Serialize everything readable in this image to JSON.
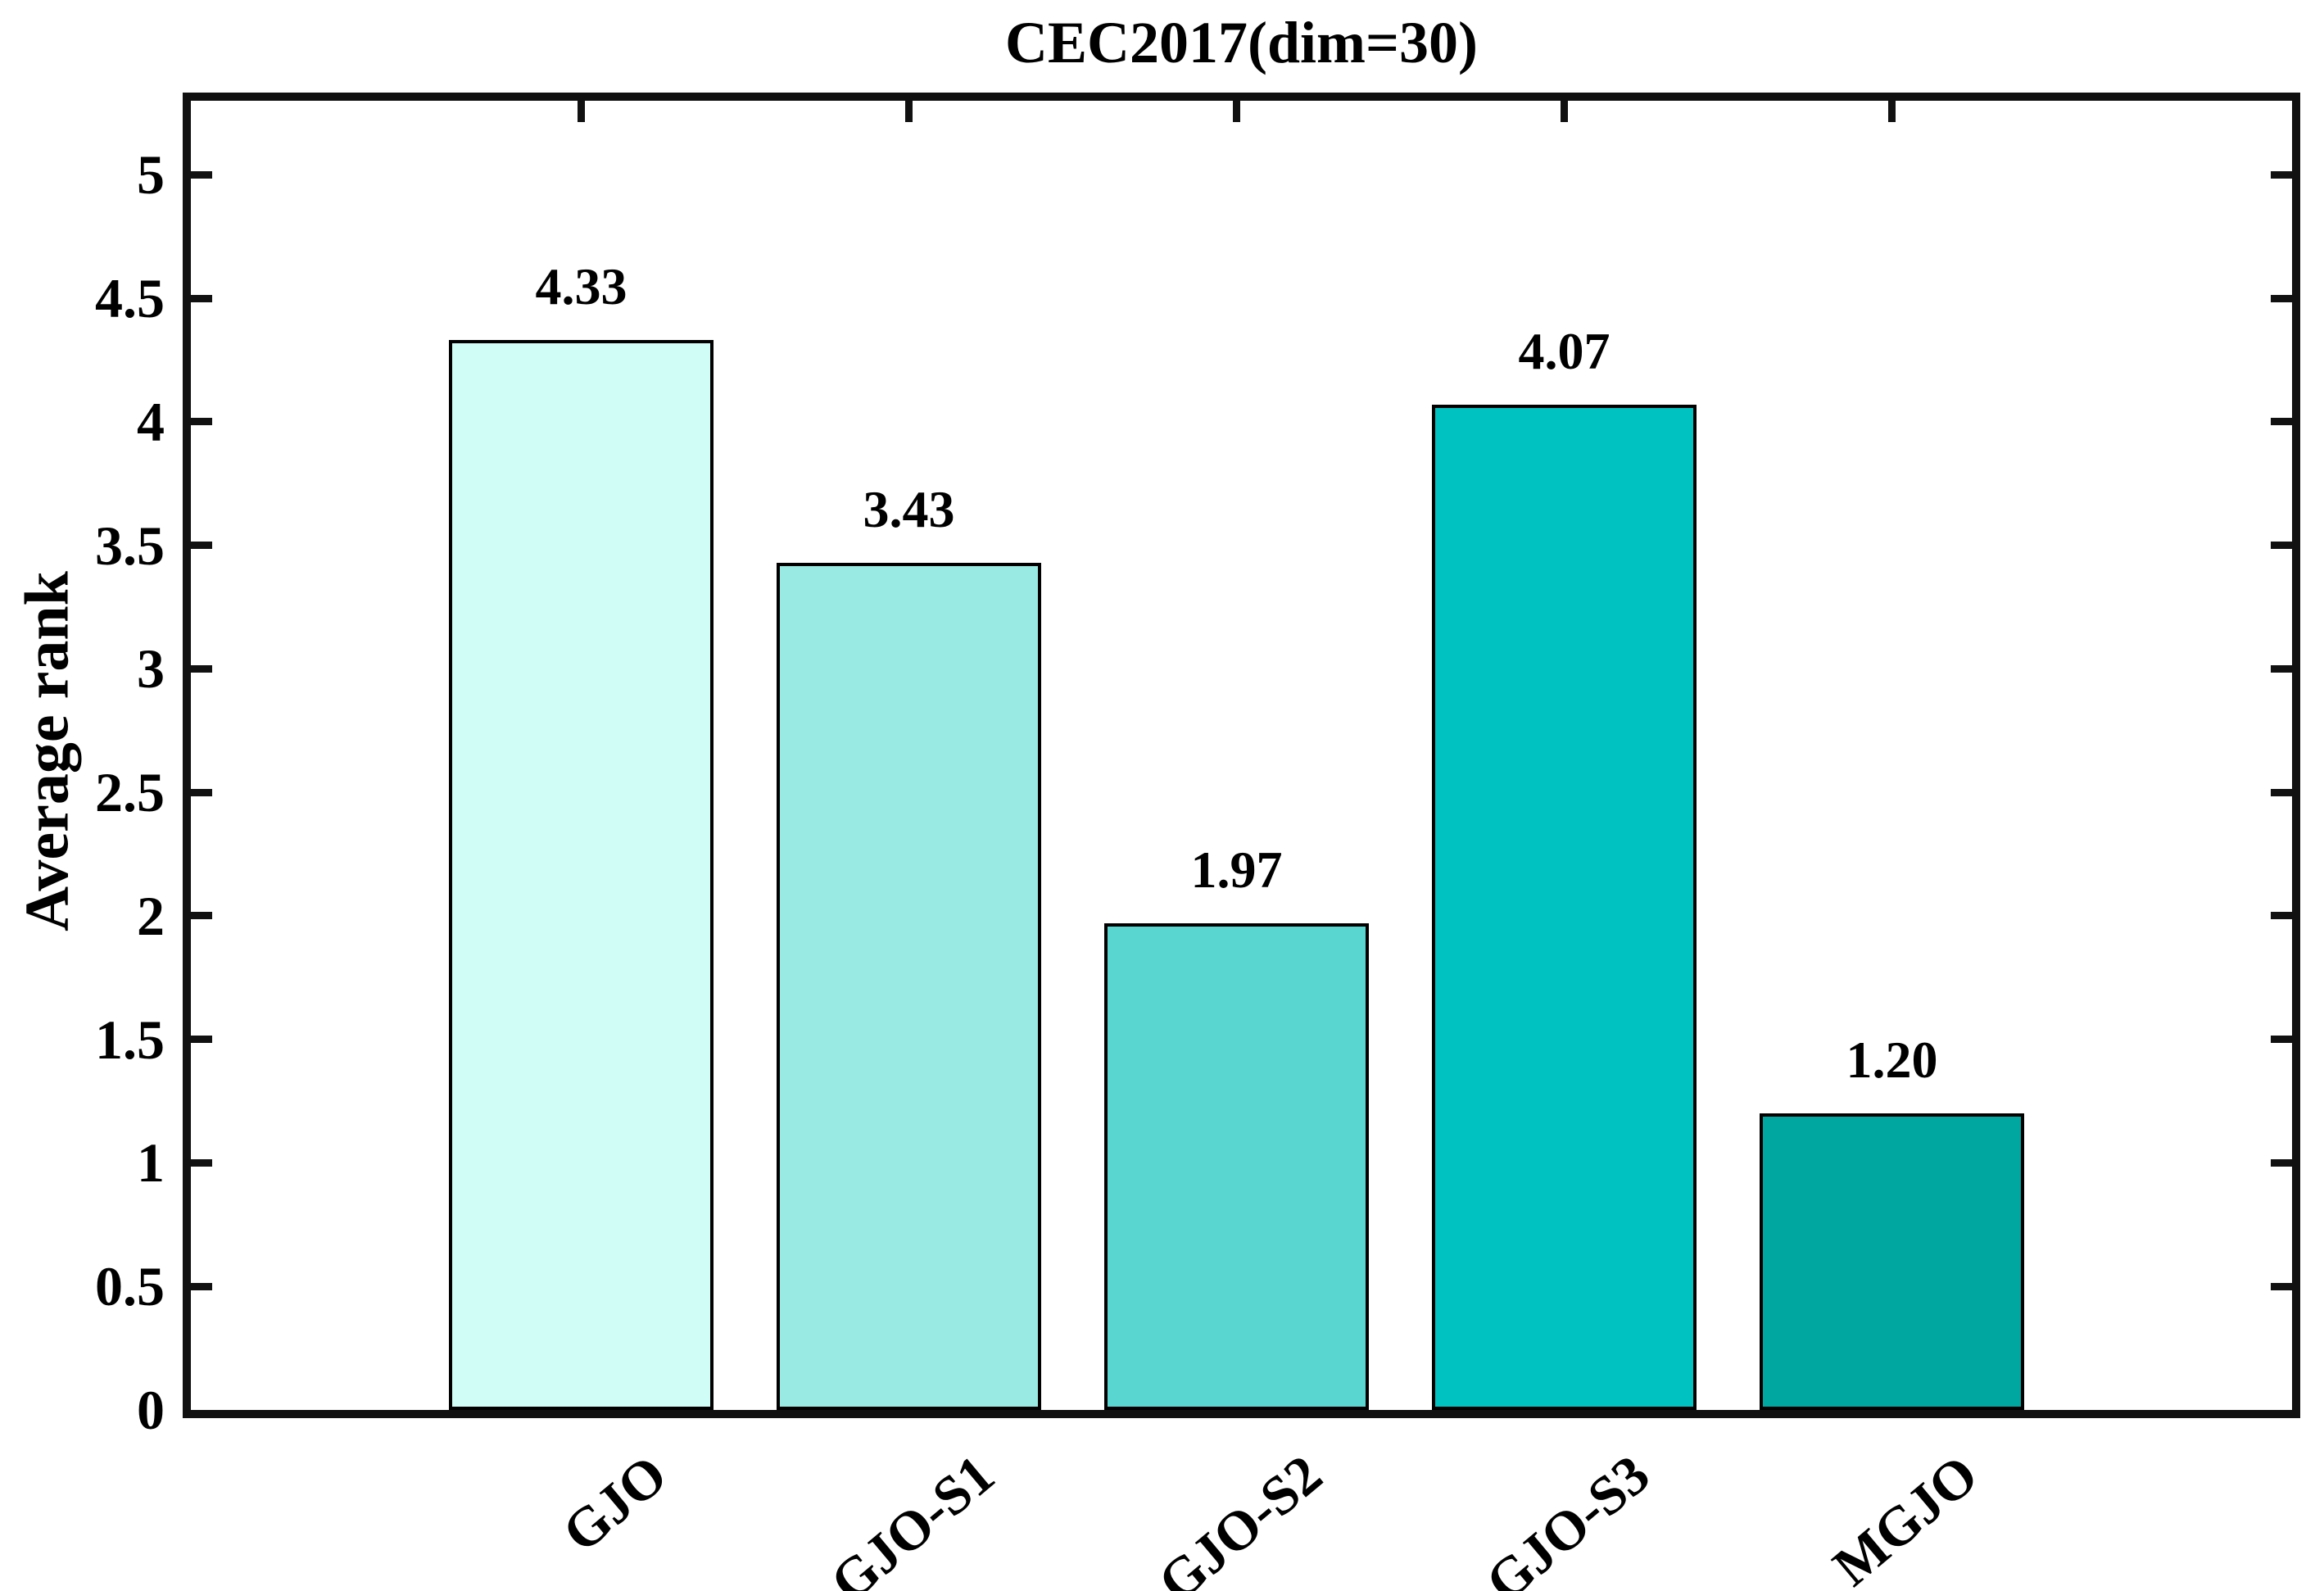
{
  "figure": {
    "title": "CEC2017(dim=30)"
  },
  "chart_data": {
    "type": "bar",
    "title": "CEC2017(dim=30)",
    "xlabel": "",
    "ylabel": "Average rank",
    "categories": [
      "GJO",
      "GJO-S1",
      "GJO-S2",
      "GJO-S3",
      "MGJO"
    ],
    "values": [
      4.33,
      3.43,
      1.97,
      4.07,
      1.2
    ],
    "value_labels": [
      "4.33",
      "3.43",
      "1.97",
      "4.07",
      "1.20"
    ],
    "bar_colors": [
      "#d0fdf6",
      "#99eae2",
      "#5ad6d1",
      "#00c3c1",
      "#00a6a0"
    ],
    "bar_edge_color": "#000000",
    "axis_color": "#111111",
    "text_color": "#000000",
    "background_color": "#ffffff",
    "ylim": [
      0,
      5.3
    ],
    "yticks": [
      0,
      0.5,
      1,
      1.5,
      2,
      2.5,
      3,
      3.5,
      4,
      4.5,
      5
    ],
    "ytick_labels": [
      "0",
      "0.5",
      "1",
      "1.5",
      "2",
      "2.5",
      "3",
      "3.5",
      "4",
      "4.5",
      "5"
    ],
    "xtick_label_rotation_deg": 40,
    "grid": false,
    "legend": "none",
    "box": "on",
    "tick_direction": "in"
  }
}
